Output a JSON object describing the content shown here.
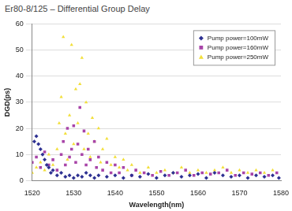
{
  "chart_data": {
    "type": "scatter",
    "title": "Er80-8/125 – Differential Group Delay",
    "x_label": "Wavelength(nm)",
    "y_label": "DGD(ps)",
    "xlim": [
      1520,
      1580
    ],
    "xticks": [
      1520,
      1530,
      1540,
      1550,
      1560,
      1570,
      1580
    ],
    "ylim": [
      0,
      60
    ],
    "yticks": [
      0,
      10,
      20,
      30,
      40,
      50,
      60
    ],
    "grid": true,
    "legend": "top-right",
    "series": [
      {
        "name": "Pump power=100mW",
        "color": "#2e3192",
        "marker": "diamond",
        "values": [
          [
            1520.5,
            15
          ],
          [
            1521,
            17
          ],
          [
            1521.5,
            14
          ],
          [
            1522,
            12
          ],
          [
            1522.5,
            10
          ],
          [
            1523,
            8
          ],
          [
            1523.5,
            6
          ],
          [
            1524,
            5
          ],
          [
            1524.5,
            3
          ],
          [
            1525,
            4
          ],
          [
            1526,
            2
          ],
          [
            1527,
            3
          ],
          [
            1528,
            1.5
          ],
          [
            1529,
            2
          ],
          [
            1530,
            1
          ],
          [
            1531,
            2
          ],
          [
            1532,
            1.5
          ],
          [
            1533,
            3
          ],
          [
            1534,
            2
          ],
          [
            1535,
            1
          ],
          [
            1536,
            2
          ],
          [
            1538,
            1.5
          ],
          [
            1540,
            2
          ],
          [
            1542,
            1
          ],
          [
            1544,
            2
          ],
          [
            1546,
            1.5
          ],
          [
            1548,
            2.5
          ],
          [
            1550,
            1
          ],
          [
            1552,
            2
          ],
          [
            1554,
            3
          ],
          [
            1556,
            1.5
          ],
          [
            1558,
            2
          ],
          [
            1560,
            2.5
          ],
          [
            1562,
            1
          ],
          [
            1564,
            3
          ],
          [
            1566,
            2
          ],
          [
            1568,
            1.5
          ],
          [
            1570,
            2
          ],
          [
            1572,
            1
          ],
          [
            1574,
            2
          ],
          [
            1576,
            1.5
          ],
          [
            1578,
            2
          ],
          [
            1579.5,
            1
          ]
        ]
      },
      {
        "name": "Pump power=160mW",
        "color": "#a844a8",
        "marker": "square",
        "values": [
          [
            1520,
            7
          ],
          [
            1521,
            9
          ],
          [
            1522,
            5
          ],
          [
            1523,
            11
          ],
          [
            1524,
            6
          ],
          [
            1525,
            8
          ],
          [
            1526,
            4
          ],
          [
            1527,
            10
          ],
          [
            1527.5,
            15
          ],
          [
            1528,
            6
          ],
          [
            1528.5,
            20
          ],
          [
            1529,
            9
          ],
          [
            1529.5,
            12
          ],
          [
            1530,
            21
          ],
          [
            1530.5,
            7
          ],
          [
            1531,
            14
          ],
          [
            1531.5,
            28
          ],
          [
            1532,
            10
          ],
          [
            1532.5,
            19
          ],
          [
            1533,
            6
          ],
          [
            1533.5,
            12
          ],
          [
            1534,
            8
          ],
          [
            1535,
            15
          ],
          [
            1535.5,
            5
          ],
          [
            1536,
            9
          ],
          [
            1537,
            4
          ],
          [
            1538,
            7
          ],
          [
            1539,
            3
          ],
          [
            1540,
            6
          ],
          [
            1541,
            3
          ],
          [
            1542,
            5
          ],
          [
            1544,
            2
          ],
          [
            1545,
            4
          ],
          [
            1547,
            3
          ],
          [
            1549,
            2
          ],
          [
            1551,
            3.5
          ],
          [
            1553,
            2
          ],
          [
            1555,
            3
          ],
          [
            1557,
            4
          ],
          [
            1559,
            2
          ],
          [
            1561,
            3
          ],
          [
            1563,
            2.5
          ],
          [
            1565,
            3
          ],
          [
            1567,
            4
          ],
          [
            1569,
            2
          ],
          [
            1571,
            3
          ],
          [
            1573,
            2.5
          ],
          [
            1575,
            3
          ],
          [
            1577,
            2
          ],
          [
            1579,
            3
          ]
        ]
      },
      {
        "name": "Pump power=250mW",
        "color": "#f2df3a",
        "marker": "triangle",
        "values": [
          [
            1520,
            3
          ],
          [
            1521,
            5
          ],
          [
            1522,
            7
          ],
          [
            1523,
            4
          ],
          [
            1524,
            10
          ],
          [
            1525,
            6
          ],
          [
            1526,
            12
          ],
          [
            1526.5,
            22
          ],
          [
            1527,
            32
          ],
          [
            1527.5,
            55
          ],
          [
            1528,
            18
          ],
          [
            1528.5,
            8
          ],
          [
            1529,
            25
          ],
          [
            1529.5,
            52
          ],
          [
            1530,
            14
          ],
          [
            1530.5,
            35
          ],
          [
            1531,
            22
          ],
          [
            1531.5,
            37
          ],
          [
            1532,
            47
          ],
          [
            1532.5,
            12
          ],
          [
            1533,
            30
          ],
          [
            1533.5,
            18
          ],
          [
            1534,
            9
          ],
          [
            1534.5,
            24
          ],
          [
            1535,
            15
          ],
          [
            1536,
            20
          ],
          [
            1536.5,
            7
          ],
          [
            1537,
            12
          ],
          [
            1538,
            16
          ],
          [
            1539,
            6
          ],
          [
            1540,
            9
          ],
          [
            1541,
            5
          ],
          [
            1542,
            8
          ],
          [
            1543,
            4
          ],
          [
            1544,
            6
          ],
          [
            1546,
            3
          ],
          [
            1548,
            5
          ],
          [
            1550,
            3
          ],
          [
            1552,
            4
          ],
          [
            1554,
            3
          ],
          [
            1556,
            5
          ],
          [
            1558,
            3
          ],
          [
            1560,
            4
          ],
          [
            1562,
            3
          ],
          [
            1564,
            4
          ],
          [
            1566,
            5
          ],
          [
            1568,
            3
          ],
          [
            1570,
            4
          ],
          [
            1572,
            3
          ],
          [
            1574,
            4
          ],
          [
            1576,
            3
          ],
          [
            1578,
            4
          ]
        ]
      }
    ]
  }
}
